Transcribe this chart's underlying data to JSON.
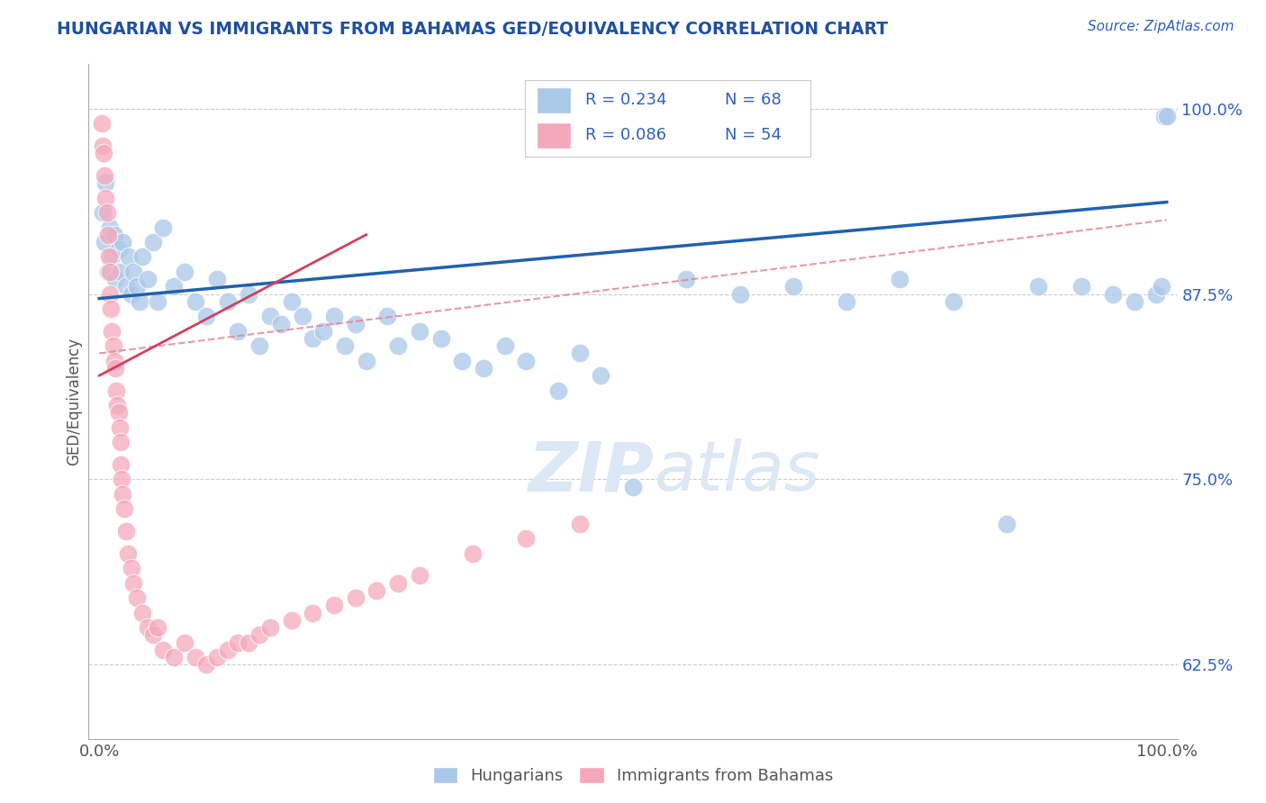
{
  "title": "HUNGARIAN VS IMMIGRANTS FROM BAHAMAS GED/EQUIVALENCY CORRELATION CHART",
  "source_text": "Source: ZipAtlas.com",
  "ylabel": "GED/Equivalency",
  "xlim": [
    0.0,
    100.0
  ],
  "ylim": [
    57.5,
    103.0
  ],
  "yticks": [
    62.5,
    75.0,
    87.5,
    100.0
  ],
  "ytick_labels": [
    "62.5%",
    "75.0%",
    "87.5%",
    "100.0%"
  ],
  "blue_color": "#aac8e8",
  "pink_color": "#f5a8bc",
  "blue_line_color": "#2060b0",
  "pink_line_color": "#d04060",
  "pink_dash_color": "#e08090",
  "legend_text_color": "#3060c0",
  "watermark_color": "#dce8f5",
  "background_color": "#ffffff",
  "title_color": "#2050a0",
  "grid_color": "#cccccc",
  "source_color": "#3060c0",
  "ylabel_color": "#555555",
  "xtick_color": "#555555",
  "legend_border_color": "#cccccc",
  "bottom_legend_color": "#555555"
}
